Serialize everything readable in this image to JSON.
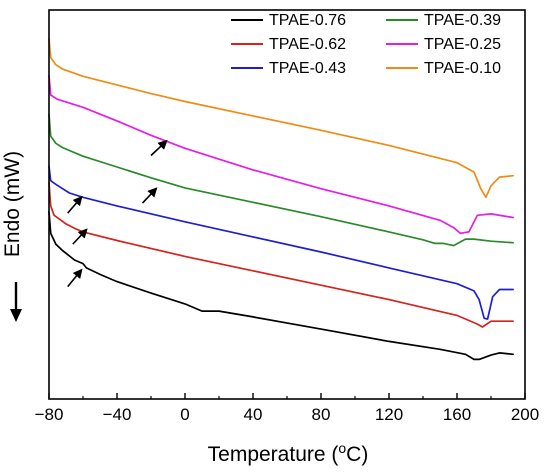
{
  "chart_data": {
    "type": "line",
    "xlabel": "Temperature (",
    "xlabel_sup": "o",
    "xlabel_tail": "C)",
    "ylabel": "Endo (mW)",
    "xlim": [
      -80,
      200
    ],
    "xticks": [
      -80,
      -40,
      0,
      40,
      80,
      120,
      160,
      200
    ],
    "legend_position": "top-right",
    "series": [
      {
        "name": "TPAE-0.76",
        "color": "#000000",
        "x": [
          -80,
          -79,
          -76,
          -72,
          -65,
          -60,
          -58,
          -50,
          -40,
          -20,
          0,
          10,
          14,
          20,
          40,
          80,
          120,
          150,
          165,
          170,
          173,
          180,
          185,
          193
        ],
        "y": [
          2.6,
          2.3,
          2.15,
          2.06,
          1.93,
          1.88,
          1.82,
          1.73,
          1.63,
          1.47,
          1.32,
          1.22,
          1.22,
          1.22,
          1.14,
          0.97,
          0.8,
          0.69,
          0.62,
          0.55,
          0.55,
          0.61,
          0.64,
          0.62
        ]
      },
      {
        "name": "TPAE-0.62",
        "color": "#d4241c",
        "x": [
          -80,
          -79,
          -77,
          -74,
          -70,
          -65,
          -60,
          -40,
          0,
          40,
          80,
          120,
          160,
          172,
          175,
          180,
          185,
          193
        ],
        "y": [
          3.0,
          2.68,
          2.55,
          2.5,
          2.43,
          2.37,
          2.32,
          2.2,
          1.98,
          1.78,
          1.58,
          1.38,
          1.16,
          1.04,
          1.0,
          1.08,
          1.08,
          1.08
        ]
      },
      {
        "name": "TPAE-0.43",
        "color": "#1f1fcf",
        "x": [
          -80,
          -79,
          -76,
          -72,
          -68,
          -60,
          -40,
          0,
          40,
          80,
          120,
          160,
          170,
          173,
          176,
          178,
          181,
          185,
          193
        ],
        "y": [
          3.23,
          3.03,
          2.98,
          2.92,
          2.86,
          2.8,
          2.68,
          2.46,
          2.25,
          2.04,
          1.82,
          1.6,
          1.5,
          1.38,
          1.12,
          1.11,
          1.42,
          1.52,
          1.52
        ]
      },
      {
        "name": "TPAE-0.39",
        "color": "#2a8a2a",
        "x": [
          -80,
          -79,
          -76,
          -72,
          -60,
          -40,
          -20,
          0,
          40,
          80,
          120,
          140,
          147,
          152,
          158,
          165,
          170,
          180,
          193
        ],
        "y": [
          3.95,
          3.65,
          3.55,
          3.49,
          3.37,
          3.22,
          3.07,
          2.93,
          2.73,
          2.53,
          2.32,
          2.21,
          2.16,
          2.16,
          2.13,
          2.22,
          2.22,
          2.19,
          2.17
        ]
      },
      {
        "name": "TPAE-0.25",
        "color": "#e51ee5",
        "x": [
          -80,
          -79,
          -75,
          -60,
          -40,
          -20,
          0,
          40,
          80,
          120,
          150,
          158,
          162,
          167,
          172,
          180,
          193
        ],
        "y": [
          4.49,
          4.22,
          4.16,
          4.05,
          3.86,
          3.66,
          3.48,
          3.18,
          2.92,
          2.68,
          2.48,
          2.38,
          2.3,
          2.32,
          2.55,
          2.57,
          2.52
        ]
      },
      {
        "name": "TPAE-0.10",
        "color": "#f08c14",
        "x": [
          -80,
          -79,
          -76,
          -72,
          -60,
          -40,
          -20,
          0,
          40,
          80,
          120,
          160,
          170,
          174,
          177,
          180,
          185,
          193
        ],
        "y": [
          5.0,
          4.74,
          4.64,
          4.58,
          4.48,
          4.36,
          4.24,
          4.13,
          3.93,
          3.73,
          3.52,
          3.28,
          3.15,
          2.92,
          2.8,
          2.96,
          3.08,
          3.1
        ]
      }
    ],
    "ylim": [
      0,
      5.4
    ],
    "annotations": [
      {
        "type": "arrow",
        "from": [
          -69,
          1.56
        ],
        "to": [
          -61,
          1.79
        ]
      },
      {
        "type": "arrow",
        "from": [
          -66,
          2.15
        ],
        "to": [
          -58,
          2.35
        ]
      },
      {
        "type": "arrow",
        "from": [
          -69,
          2.58
        ],
        "to": [
          -61,
          2.8
        ]
      },
      {
        "type": "arrow",
        "from": [
          -25,
          2.72
        ],
        "to": [
          -17,
          2.92
        ]
      },
      {
        "type": "arrow",
        "from": [
          -20,
          3.38
        ],
        "to": [
          -11,
          3.58
        ]
      }
    ],
    "direction_indicator": "down-arrow"
  }
}
